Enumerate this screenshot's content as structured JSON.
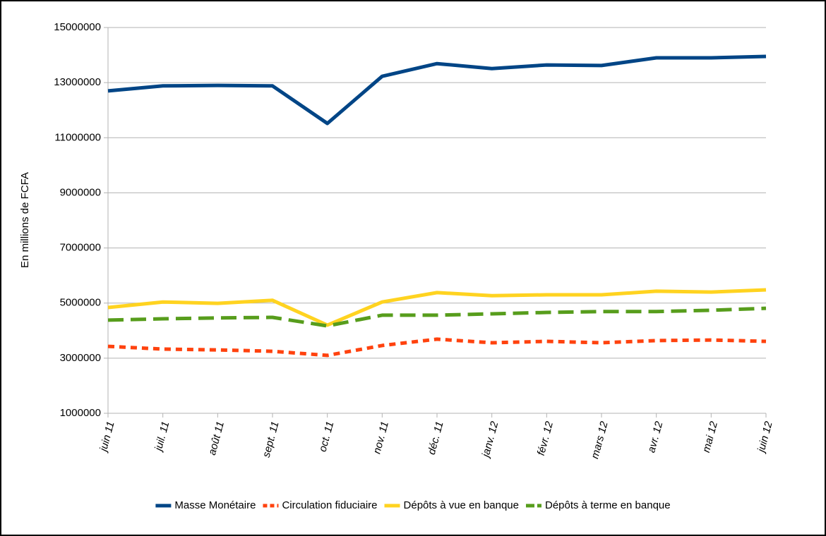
{
  "chart_data": {
    "type": "line",
    "y_label": "En millions de FCFA",
    "categories": [
      "juin 11",
      "juil. 11",
      "août 11",
      "sept. 11",
      "oct. 11",
      "nov. 11",
      "déc. 11",
      "janv. 12",
      "févr. 12",
      "mars 12",
      "avr. 12",
      "mai 12",
      "juin 12"
    ],
    "series": [
      {
        "name": "Masse Monétaire",
        "color": "#004586",
        "values": [
          12700000,
          12880000,
          12900000,
          12880000,
          11520000,
          13230000,
          13690000,
          13510000,
          13640000,
          13620000,
          13900000,
          13900000,
          13950000
        ]
      },
      {
        "name": "Circulation fiduciaire",
        "color": "#ff420e",
        "values": [
          3430000,
          3330000,
          3300000,
          3250000,
          3100000,
          3460000,
          3690000,
          3560000,
          3610000,
          3560000,
          3640000,
          3660000,
          3610000
        ]
      },
      {
        "name": "Dépôts à vue en banque",
        "color": "#ffd320",
        "values": [
          4840000,
          5040000,
          4990000,
          5100000,
          4200000,
          5040000,
          5380000,
          5270000,
          5300000,
          5300000,
          5430000,
          5400000,
          5480000
        ]
      },
      {
        "name": "Dépôts à terme en banque",
        "color": "#579d1c",
        "values": [
          4380000,
          4430000,
          4460000,
          4480000,
          4170000,
          4560000,
          4560000,
          4610000,
          4660000,
          4690000,
          4690000,
          4740000,
          4810000
        ]
      }
    ],
    "ylim": [
      1000000,
      15000000
    ],
    "yticks": [
      1000000,
      3000000,
      5000000,
      7000000,
      9000000,
      11000000,
      13000000,
      15000000
    ],
    "grid": true,
    "legend": "bottom"
  }
}
